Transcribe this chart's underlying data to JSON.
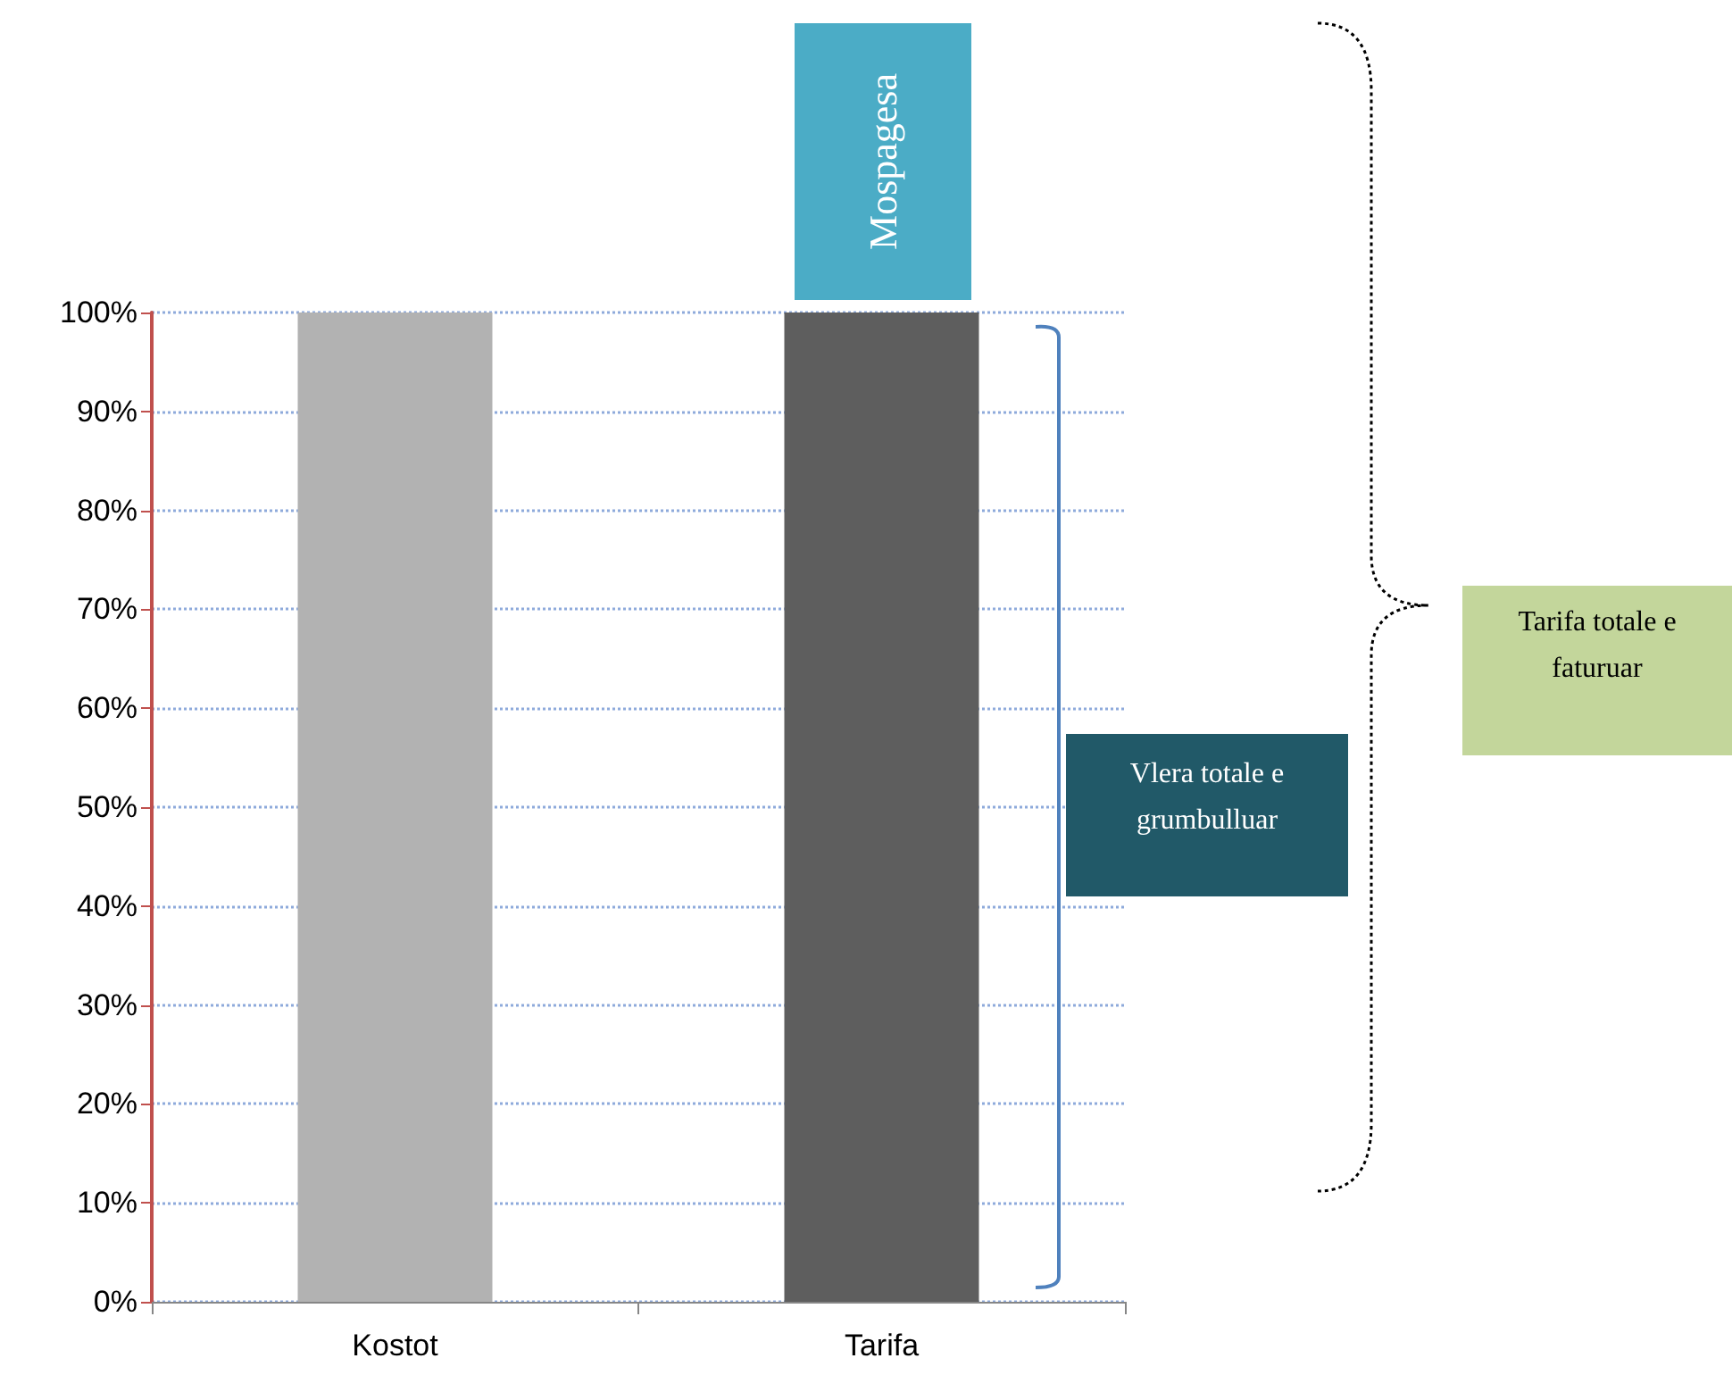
{
  "chart_data": {
    "type": "bar",
    "categories": [
      "Kostot",
      "Tarifa"
    ],
    "values": [
      100,
      100
    ],
    "colors": [
      "#b2b2b2",
      "#5e5e5e"
    ],
    "ylim": [
      0,
      100
    ],
    "yticks": [
      {
        "value": 0,
        "label": "0%"
      },
      {
        "value": 10,
        "label": "10%"
      },
      {
        "value": 20,
        "label": "20%"
      },
      {
        "value": 30,
        "label": "30%"
      },
      {
        "value": 40,
        "label": "40%"
      },
      {
        "value": 50,
        "label": "50%"
      },
      {
        "value": 60,
        "label": "60%"
      },
      {
        "value": 70,
        "label": "70%"
      },
      {
        "value": 80,
        "label": "80%"
      },
      {
        "value": 90,
        "label": "90%"
      },
      {
        "value": 100,
        "label": "100%"
      }
    ],
    "grid": "y",
    "annotations": [
      "Mospagesa",
      "Vlera totale e grumbulluar",
      "Tarifa totale e faturuar"
    ]
  }
}
